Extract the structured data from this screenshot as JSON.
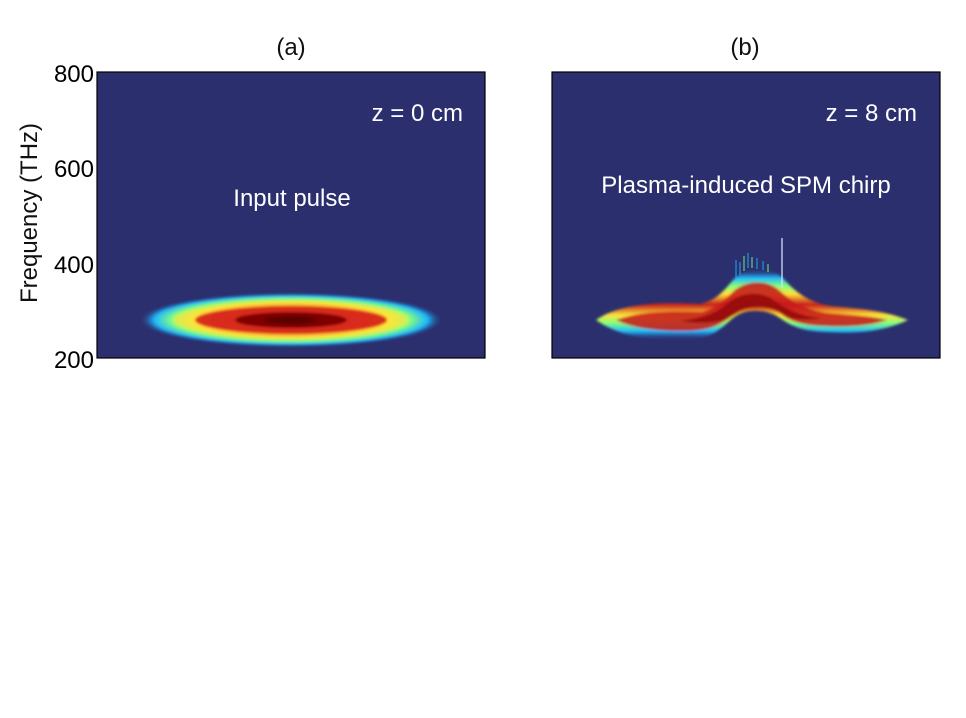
{
  "chart_data": [
    {
      "type": "heatmap",
      "panel_label": "(a)",
      "ylabel": "Frequency (THz)",
      "ylim": [
        200,
        800
      ],
      "yticks": [
        "800",
        "600",
        "400",
        "200"
      ],
      "annotations": [
        "z = 0 cm",
        "Input pulse"
      ],
      "z_cm": 0,
      "spectrum": {
        "center_freq_thz": 282,
        "half_width_freq_thz": 33,
        "shape": "elliptical gaussian"
      },
      "colormap": "jet",
      "background_color": "#2b2f6e"
    },
    {
      "type": "heatmap",
      "panel_label": "(b)",
      "ylim": [
        200,
        800
      ],
      "annotations": [
        "z = 8 cm",
        "Plasma-induced SPM chirp"
      ],
      "z_cm": 8,
      "spectrum": {
        "base_freq_thz": 285,
        "peak_freq_thz": 345,
        "half_width_freq_thz": 28,
        "shape": "blue-shifted bump"
      },
      "colormap": "jet",
      "background_color": "#2b2f6e"
    }
  ]
}
